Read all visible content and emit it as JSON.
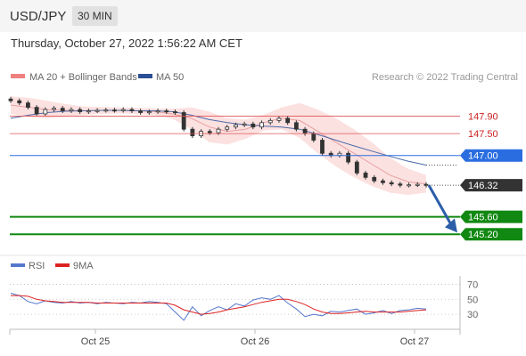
{
  "header": {
    "pair": "USD/JPY",
    "timeframe": "30 MIN",
    "timestamp": "Thursday, October 27, 2022 1:56:22 AM CET"
  },
  "legend": {
    "ma20_bb": "MA 20 + Bollinger Bands",
    "ma50": "MA 50",
    "credit": "Research © 2022 Trading Central",
    "rsi": "RSI",
    "rsi_ma": "9MA"
  },
  "colors": {
    "bollinger_fill": "#fcdede",
    "ma20": "#e8a0a0",
    "ma50": "#4a6aa8",
    "resistance": "#e05555",
    "pivot": "#2a6de0",
    "support": "#118811",
    "forecast_arrow": "#2b5ea8",
    "rsi": "#5577cc",
    "rsi_ma": "#dd2222",
    "candle": "#333333"
  },
  "chart_data": [
    {
      "type": "line",
      "title": "",
      "x_ticks": [
        "Oct 25",
        "Oct 26",
        "Oct 27"
      ],
      "ylim": [
        144.9,
        148.6
      ],
      "series": [
        {
          "name": "MA 20 + Bollinger Bands",
          "values": [
            148.15,
            148.1,
            148.05,
            148.03,
            148.02,
            148.03,
            148.03,
            148.02,
            148.0,
            147.95,
            147.85,
            147.65,
            147.55,
            147.6,
            147.75,
            147.85,
            147.8,
            147.55,
            147.3,
            147.05,
            146.8,
            146.55,
            146.4,
            146.35
          ]
        },
        {
          "name": "MA 50",
          "values": [
            147.85,
            147.92,
            147.98,
            148.01,
            148.02,
            148.03,
            148.03,
            148.02,
            148.02,
            148.0,
            147.92,
            147.82,
            147.75,
            147.7,
            147.67,
            147.65,
            147.6,
            147.48,
            147.35,
            147.22,
            147.1,
            146.98,
            146.87,
            146.78
          ]
        }
      ],
      "candles": [
        148.25,
        148.2,
        148.1,
        147.95,
        148.05,
        148.08,
        148.02,
        148.05,
        148.0,
        148.02,
        148.03,
        148.04,
        148.03,
        148.05,
        148.02,
        147.98,
        148.0,
        148.02,
        148.0,
        147.98,
        147.6,
        147.45,
        147.55,
        147.52,
        147.6,
        147.65,
        147.7,
        147.72,
        147.65,
        147.75,
        147.8,
        147.85,
        147.75,
        147.6,
        147.5,
        147.35,
        147.05,
        147.0,
        147.05,
        146.85,
        146.6,
        146.5,
        146.42,
        146.38,
        146.35,
        146.32,
        146.33,
        146.34,
        146.32
      ],
      "levels": [
        {
          "label": "147.90",
          "value": 147.9,
          "kind": "resistance"
        },
        {
          "label": "147.50",
          "value": 147.5,
          "kind": "resistance"
        },
        {
          "label": "147.00",
          "value": 147.0,
          "kind": "pivot"
        },
        {
          "label": "146.32",
          "value": 146.32,
          "kind": "last"
        },
        {
          "label": "145.60",
          "value": 145.6,
          "kind": "support"
        },
        {
          "label": "145.20",
          "value": 145.2,
          "kind": "support"
        }
      ]
    },
    {
      "type": "line",
      "title": "",
      "ylim": [
        10,
        80
      ],
      "y_ticks": [
        "70",
        "50",
        "30"
      ],
      "series": [
        {
          "name": "RSI",
          "values": [
            58,
            55,
            47,
            44,
            48,
            46,
            45,
            47,
            45,
            46,
            44,
            46,
            45,
            44,
            46,
            45,
            47,
            46,
            44,
            33,
            22,
            40,
            28,
            35,
            40,
            36,
            44,
            41,
            49,
            52,
            50,
            55,
            45,
            37,
            27,
            30,
            28,
            34,
            33,
            35,
            37,
            30,
            32,
            35,
            31,
            35,
            36,
            38,
            37
          ]
        },
        {
          "name": "9MA",
          "values": [
            55,
            55,
            54,
            50,
            48,
            47,
            46,
            46,
            46,
            46,
            45,
            45,
            45,
            45,
            45,
            45,
            45,
            45,
            45,
            42,
            36,
            33,
            30,
            31,
            33,
            36,
            38,
            40,
            43,
            46,
            48,
            50,
            50,
            47,
            43,
            37,
            33,
            31,
            31,
            32,
            33,
            34,
            33,
            33,
            33,
            33,
            34,
            35,
            36
          ]
        }
      ]
    }
  ]
}
